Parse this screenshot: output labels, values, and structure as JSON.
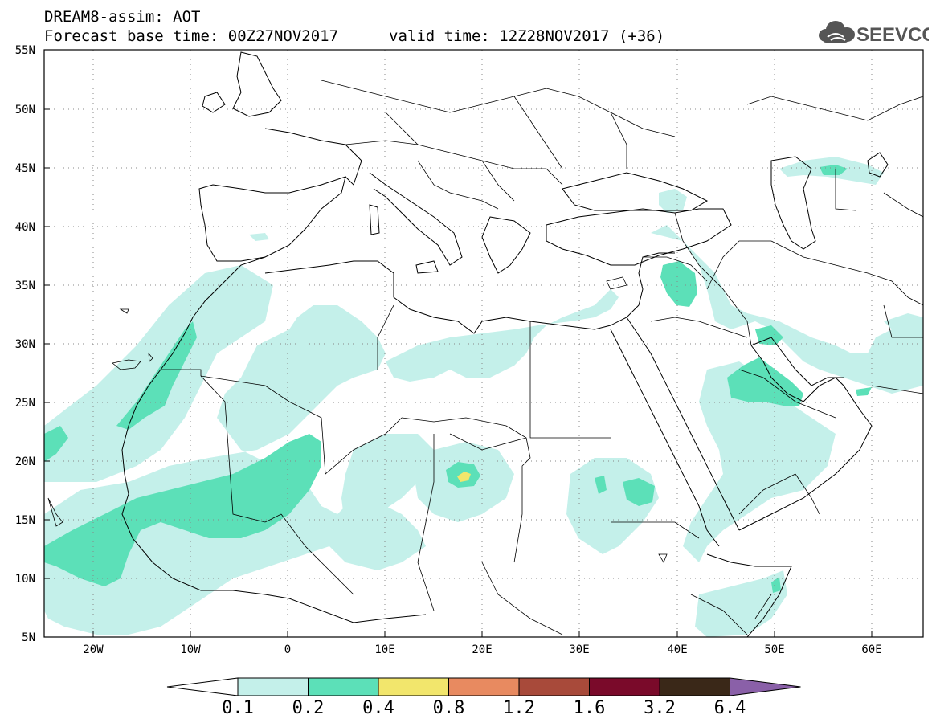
{
  "header": {
    "title": "DREAM8-assim: AOT",
    "base_time": "Forecast base time: 00Z27NOV2017",
    "valid_time": "valid time: 12Z28NOV2017 (+36)"
  },
  "logo": {
    "text": "SEEVCCC",
    "icon": "cloud-icon"
  },
  "map": {
    "lat_labels": [
      "55N",
      "50N",
      "45N",
      "40N",
      "35N",
      "30N",
      "25N",
      "20N",
      "15N",
      "10N",
      "5N"
    ],
    "lon_labels": [
      "20W",
      "10W",
      "0",
      "10E",
      "20E",
      "30E",
      "40E",
      "50E",
      "60E"
    ],
    "lat_range": [
      5,
      55
    ],
    "lon_range": [
      -25,
      65
    ]
  },
  "legend": {
    "labels": [
      "0.1",
      "0.2",
      "0.4",
      "0.8",
      "1.2",
      "1.6",
      "3.2",
      "6.4"
    ],
    "colors": [
      "#ffffff",
      "#c4f0ea",
      "#5ce0b8",
      "#f2e66c",
      "#e88a60",
      "#a84a3a",
      "#7a0a2a",
      "#3a2818",
      "#8a60a8"
    ]
  }
}
